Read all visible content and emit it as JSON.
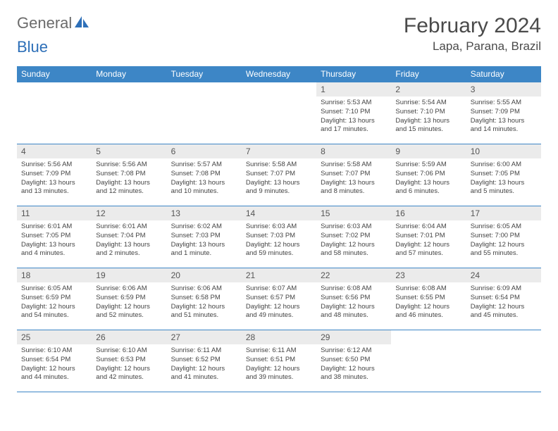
{
  "logo": {
    "text_gray": "General",
    "text_blue": "Blue"
  },
  "title": "February 2024",
  "location": "Lapa, Parana, Brazil",
  "colors": {
    "header_bg": "#3d86c6",
    "header_text": "#ffffff",
    "daynum_bg": "#ebebeb",
    "row_border": "#3d86c6",
    "logo_gray": "#6b6b6b",
    "logo_blue": "#2d6fb8"
  },
  "day_headers": [
    "Sunday",
    "Monday",
    "Tuesday",
    "Wednesday",
    "Thursday",
    "Friday",
    "Saturday"
  ],
  "weeks": [
    [
      {
        "num": "",
        "sunrise": "",
        "sunset": "",
        "daylight": ""
      },
      {
        "num": "",
        "sunrise": "",
        "sunset": "",
        "daylight": ""
      },
      {
        "num": "",
        "sunrise": "",
        "sunset": "",
        "daylight": ""
      },
      {
        "num": "",
        "sunrise": "",
        "sunset": "",
        "daylight": ""
      },
      {
        "num": "1",
        "sunrise": "Sunrise: 5:53 AM",
        "sunset": "Sunset: 7:10 PM",
        "daylight": "Daylight: 13 hours and 17 minutes."
      },
      {
        "num": "2",
        "sunrise": "Sunrise: 5:54 AM",
        "sunset": "Sunset: 7:10 PM",
        "daylight": "Daylight: 13 hours and 15 minutes."
      },
      {
        "num": "3",
        "sunrise": "Sunrise: 5:55 AM",
        "sunset": "Sunset: 7:09 PM",
        "daylight": "Daylight: 13 hours and 14 minutes."
      }
    ],
    [
      {
        "num": "4",
        "sunrise": "Sunrise: 5:56 AM",
        "sunset": "Sunset: 7:09 PM",
        "daylight": "Daylight: 13 hours and 13 minutes."
      },
      {
        "num": "5",
        "sunrise": "Sunrise: 5:56 AM",
        "sunset": "Sunset: 7:08 PM",
        "daylight": "Daylight: 13 hours and 12 minutes."
      },
      {
        "num": "6",
        "sunrise": "Sunrise: 5:57 AM",
        "sunset": "Sunset: 7:08 PM",
        "daylight": "Daylight: 13 hours and 10 minutes."
      },
      {
        "num": "7",
        "sunrise": "Sunrise: 5:58 AM",
        "sunset": "Sunset: 7:07 PM",
        "daylight": "Daylight: 13 hours and 9 minutes."
      },
      {
        "num": "8",
        "sunrise": "Sunrise: 5:58 AM",
        "sunset": "Sunset: 7:07 PM",
        "daylight": "Daylight: 13 hours and 8 minutes."
      },
      {
        "num": "9",
        "sunrise": "Sunrise: 5:59 AM",
        "sunset": "Sunset: 7:06 PM",
        "daylight": "Daylight: 13 hours and 6 minutes."
      },
      {
        "num": "10",
        "sunrise": "Sunrise: 6:00 AM",
        "sunset": "Sunset: 7:05 PM",
        "daylight": "Daylight: 13 hours and 5 minutes."
      }
    ],
    [
      {
        "num": "11",
        "sunrise": "Sunrise: 6:01 AM",
        "sunset": "Sunset: 7:05 PM",
        "daylight": "Daylight: 13 hours and 4 minutes."
      },
      {
        "num": "12",
        "sunrise": "Sunrise: 6:01 AM",
        "sunset": "Sunset: 7:04 PM",
        "daylight": "Daylight: 13 hours and 2 minutes."
      },
      {
        "num": "13",
        "sunrise": "Sunrise: 6:02 AM",
        "sunset": "Sunset: 7:03 PM",
        "daylight": "Daylight: 13 hours and 1 minute."
      },
      {
        "num": "14",
        "sunrise": "Sunrise: 6:03 AM",
        "sunset": "Sunset: 7:03 PM",
        "daylight": "Daylight: 12 hours and 59 minutes."
      },
      {
        "num": "15",
        "sunrise": "Sunrise: 6:03 AM",
        "sunset": "Sunset: 7:02 PM",
        "daylight": "Daylight: 12 hours and 58 minutes."
      },
      {
        "num": "16",
        "sunrise": "Sunrise: 6:04 AM",
        "sunset": "Sunset: 7:01 PM",
        "daylight": "Daylight: 12 hours and 57 minutes."
      },
      {
        "num": "17",
        "sunrise": "Sunrise: 6:05 AM",
        "sunset": "Sunset: 7:00 PM",
        "daylight": "Daylight: 12 hours and 55 minutes."
      }
    ],
    [
      {
        "num": "18",
        "sunrise": "Sunrise: 6:05 AM",
        "sunset": "Sunset: 6:59 PM",
        "daylight": "Daylight: 12 hours and 54 minutes."
      },
      {
        "num": "19",
        "sunrise": "Sunrise: 6:06 AM",
        "sunset": "Sunset: 6:59 PM",
        "daylight": "Daylight: 12 hours and 52 minutes."
      },
      {
        "num": "20",
        "sunrise": "Sunrise: 6:06 AM",
        "sunset": "Sunset: 6:58 PM",
        "daylight": "Daylight: 12 hours and 51 minutes."
      },
      {
        "num": "21",
        "sunrise": "Sunrise: 6:07 AM",
        "sunset": "Sunset: 6:57 PM",
        "daylight": "Daylight: 12 hours and 49 minutes."
      },
      {
        "num": "22",
        "sunrise": "Sunrise: 6:08 AM",
        "sunset": "Sunset: 6:56 PM",
        "daylight": "Daylight: 12 hours and 48 minutes."
      },
      {
        "num": "23",
        "sunrise": "Sunrise: 6:08 AM",
        "sunset": "Sunset: 6:55 PM",
        "daylight": "Daylight: 12 hours and 46 minutes."
      },
      {
        "num": "24",
        "sunrise": "Sunrise: 6:09 AM",
        "sunset": "Sunset: 6:54 PM",
        "daylight": "Daylight: 12 hours and 45 minutes."
      }
    ],
    [
      {
        "num": "25",
        "sunrise": "Sunrise: 6:10 AM",
        "sunset": "Sunset: 6:54 PM",
        "daylight": "Daylight: 12 hours and 44 minutes."
      },
      {
        "num": "26",
        "sunrise": "Sunrise: 6:10 AM",
        "sunset": "Sunset: 6:53 PM",
        "daylight": "Daylight: 12 hours and 42 minutes."
      },
      {
        "num": "27",
        "sunrise": "Sunrise: 6:11 AM",
        "sunset": "Sunset: 6:52 PM",
        "daylight": "Daylight: 12 hours and 41 minutes."
      },
      {
        "num": "28",
        "sunrise": "Sunrise: 6:11 AM",
        "sunset": "Sunset: 6:51 PM",
        "daylight": "Daylight: 12 hours and 39 minutes."
      },
      {
        "num": "29",
        "sunrise": "Sunrise: 6:12 AM",
        "sunset": "Sunset: 6:50 PM",
        "daylight": "Daylight: 12 hours and 38 minutes."
      },
      {
        "num": "",
        "sunrise": "",
        "sunset": "",
        "daylight": ""
      },
      {
        "num": "",
        "sunrise": "",
        "sunset": "",
        "daylight": ""
      }
    ]
  ]
}
